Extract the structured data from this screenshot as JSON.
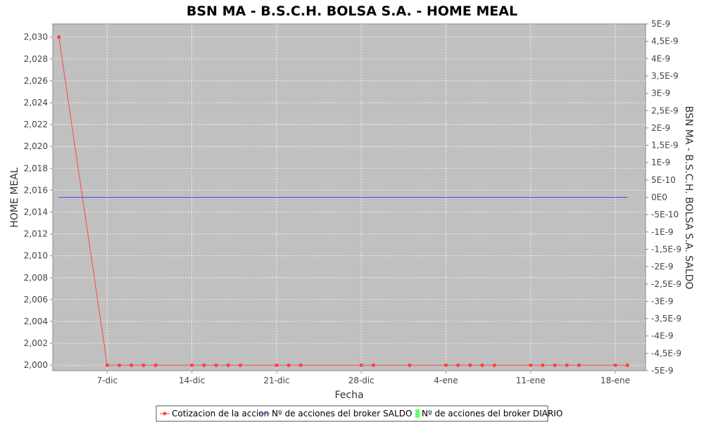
{
  "chart_data": {
    "type": "line",
    "title": "BSN MA - B.S.C.H. BOLSA S.A. - HOME MEAL",
    "xlabel": "Fecha",
    "ylabel_left": "HOME MEAL",
    "ylabel_right": "BSN MA - B.S.C.H. BOLSA S.A. SALDO",
    "x_ticks": [
      "7-dic",
      "14-dic",
      "21-dic",
      "28-dic",
      "4-ene",
      "11-ene",
      "18-ene"
    ],
    "y_left_ticks": [
      "2,000",
      "2,002",
      "2,004",
      "2,006",
      "2,008",
      "2,010",
      "2,012",
      "2,014",
      "2,016",
      "2,018",
      "2,020",
      "2,022",
      "2,024",
      "2,026",
      "2,028",
      "2,030"
    ],
    "y_left_range": [
      1.9995,
      2.0312
    ],
    "y_right_ticks": [
      "-5E-9",
      "-4,5E-9",
      "-4E-9",
      "-3,5E-9",
      "-3E-9",
      "-2,5E-9",
      "-2E-9",
      "-1,5E-9",
      "-1E-9",
      "-5E-10",
      "0E0",
      "5E-10",
      "1E-9",
      "1,5E-9",
      "2E-9",
      "2,5E-9",
      "3E-9",
      "3,5E-9",
      "4E-9",
      "4,5E-9",
      "5E-9"
    ],
    "y_right_range": [
      -5e-09,
      5e-09
    ],
    "series": [
      {
        "name": "Cotizacion de la accion",
        "color": "#ff4444",
        "axis": "left",
        "markers": true,
        "x": [
          "2023-12-03",
          "2023-12-07",
          "2023-12-08",
          "2023-12-09",
          "2023-12-10",
          "2023-12-11",
          "2023-12-14",
          "2023-12-15",
          "2023-12-16",
          "2023-12-17",
          "2023-12-18",
          "2023-12-21",
          "2023-12-22",
          "2023-12-23",
          "2023-12-28",
          "2023-12-29",
          "2024-01-01",
          "2024-01-04",
          "2024-01-05",
          "2024-01-06",
          "2024-01-07",
          "2024-01-08",
          "2024-01-11",
          "2024-01-12",
          "2024-01-13",
          "2024-01-14",
          "2024-01-15",
          "2024-01-18",
          "2024-01-19"
        ],
        "y": [
          2.03,
          2.0,
          2.0,
          2.0,
          2.0,
          2.0,
          2.0,
          2.0,
          2.0,
          2.0,
          2.0,
          2.0,
          2.0,
          2.0,
          2.0,
          2.0,
          2.0,
          2.0,
          2.0,
          2.0,
          2.0,
          2.0,
          2.0,
          2.0,
          2.0,
          2.0,
          2.0,
          2.0,
          2.0
        ]
      },
      {
        "name": "Nº de acciones del broker SALDO",
        "color": "#4444ff",
        "axis": "right",
        "markers": false,
        "x": [
          "2023-12-03",
          "2024-01-19"
        ],
        "y": [
          0,
          0
        ]
      },
      {
        "name": "Nº de acciones del broker DIARIO",
        "color": "#66ff66",
        "axis": "right",
        "markers": false,
        "x": [],
        "y": []
      }
    ],
    "grid": true,
    "legend_position": "bottom"
  }
}
